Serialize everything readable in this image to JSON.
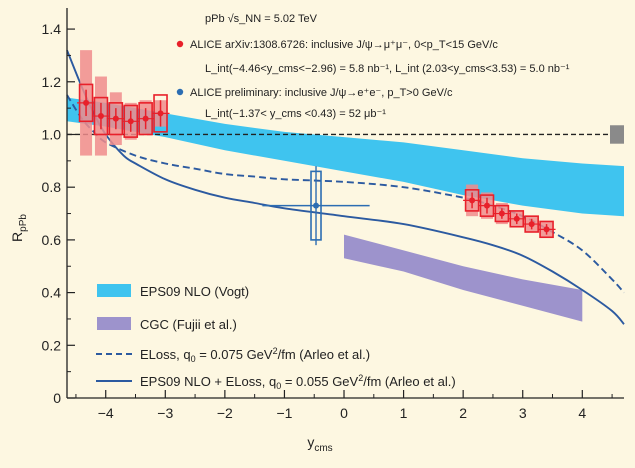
{
  "chart_data": {
    "type": "scatter",
    "xlabel_main": "y",
    "xlabel_sub": "cms",
    "ylabel_main": "R",
    "ylabel_sub": "pPb",
    "xlim": [
      -4.65,
      4.7
    ],
    "ylim": [
      0,
      1.48
    ],
    "xticks": [
      -4,
      -3,
      -2,
      -1,
      0,
      1,
      2,
      3,
      4
    ],
    "xtick_labels": [
      "−4",
      "−3",
      "−2",
      "−1",
      "0",
      "1",
      "2",
      "3",
      "4"
    ],
    "yticks": [
      0,
      0.2,
      0.4,
      0.6,
      0.8,
      1.0,
      1.2,
      1.4
    ],
    "ytick_labels": [
      "0",
      "0.2",
      "0.4",
      "0.6",
      "0.8",
      "1.0",
      "1.2",
      "1.4"
    ],
    "reference_line_y": 1.0,
    "annotations": {
      "line1": "pPb √s_NN = 5.02 TeV",
      "line2": "ALICE arXiv:1308.6726: inclusive J/ψ→μ⁺μ⁻, 0<p_T<15 GeV/c",
      "line3": "L_int(−4.46<y_cms<−2.96) = 5.8 nb⁻¹, L_int (2.03<y_cms<3.53) = 5.0 nb⁻¹",
      "line4": "ALICE preliminary: inclusive J/ψ→e⁺e⁻, p_T>0 GeV/c",
      "line5": "L_int(−1.37< y_cms <0.43) = 52 μb⁻¹"
    },
    "series": [
      {
        "name": "ALICE J/ψ→μμ backward",
        "color": "#e8202a",
        "points": [
          {
            "x": -4.33,
            "y": 1.12,
            "stat": 0.05,
            "syst": 0.07,
            "corr_lo": 0.2,
            "corr_hi": 0.2
          },
          {
            "x": -4.08,
            "y": 1.07,
            "stat": 0.05,
            "syst": 0.07,
            "corr_lo": 0.15,
            "corr_hi": 0.15
          },
          {
            "x": -3.83,
            "y": 1.06,
            "stat": 0.04,
            "syst": 0.06,
            "corr_lo": 0.1,
            "corr_hi": 0.1
          },
          {
            "x": -3.58,
            "y": 1.05,
            "stat": 0.04,
            "syst": 0.06,
            "corr_lo": 0.07,
            "corr_hi": 0.07
          },
          {
            "x": -3.33,
            "y": 1.06,
            "stat": 0.04,
            "syst": 0.06,
            "corr_lo": 0.06,
            "corr_hi": 0.07
          },
          {
            "x": -3.08,
            "y": 1.08,
            "stat": 0.05,
            "syst": 0.07,
            "corr_lo": 0.05,
            "corr_hi": 0.05
          }
        ]
      },
      {
        "name": "ALICE J/ψ→μμ forward",
        "color": "#e8202a",
        "points": [
          {
            "x": 2.15,
            "y": 0.75,
            "stat": 0.03,
            "syst": 0.04,
            "corr_lo": 0.06,
            "corr_hi": 0.06
          },
          {
            "x": 2.4,
            "y": 0.73,
            "stat": 0.03,
            "syst": 0.04,
            "corr_lo": 0.05,
            "corr_hi": 0.05
          },
          {
            "x": 2.65,
            "y": 0.7,
            "stat": 0.02,
            "syst": 0.03,
            "corr_lo": 0.04,
            "corr_hi": 0.04
          },
          {
            "x": 2.9,
            "y": 0.68,
            "stat": 0.02,
            "syst": 0.03,
            "corr_lo": 0.03,
            "corr_hi": 0.03
          },
          {
            "x": 3.15,
            "y": 0.66,
            "stat": 0.02,
            "syst": 0.03,
            "corr_lo": 0.03,
            "corr_hi": 0.03
          },
          {
            "x": 3.4,
            "y": 0.64,
            "stat": 0.02,
            "syst": 0.03,
            "corr_lo": 0.03,
            "corr_hi": 0.03
          }
        ]
      },
      {
        "name": "ALICE preliminary J/ψ→ee",
        "color": "#2c6db2",
        "points": [
          {
            "x": -0.47,
            "y": 0.73,
            "xerr_lo": 0.9,
            "xerr_hi": 0.9,
            "stat": 0.15,
            "syst": 0.13
          }
        ]
      }
    ],
    "bands": [
      {
        "name": "EPS09 NLO (Vogt)",
        "color": "#3fc4ef",
        "x": [
          -4.65,
          -4.0,
          -3.0,
          -2.0,
          -1.0,
          0.0,
          1.0,
          2.0,
          3.0,
          4.0,
          4.7
        ],
        "upper": [
          1.14,
          1.12,
          1.08,
          1.04,
          1.01,
          0.99,
          0.97,
          0.94,
          0.91,
          0.89,
          0.88
        ],
        "lower": [
          1.05,
          1.03,
          0.99,
          0.94,
          0.9,
          0.86,
          0.82,
          0.77,
          0.73,
          0.7,
          0.69
        ]
      },
      {
        "name": "CGC (Fujii et al.)",
        "color": "#9d93cc",
        "x": [
          0.0,
          1.0,
          2.0,
          3.0,
          4.0
        ],
        "upper": [
          0.62,
          0.56,
          0.5,
          0.45,
          0.41
        ],
        "lower": [
          0.53,
          0.48,
          0.41,
          0.35,
          0.29
        ]
      }
    ],
    "curves": [
      {
        "name": "ELoss, q0 = 0.075 GeV²/fm (Arleo et al.)",
        "color": "#2c5aa0",
        "dash": true,
        "x": [
          -4.65,
          -4.4,
          -4.2,
          -4.0,
          -3.5,
          -3.0,
          -2.5,
          -2.0,
          -1.5,
          -1.0,
          0.0,
          1.0,
          2.0,
          2.5,
          3.0,
          3.5,
          4.0,
          4.5,
          4.7
        ],
        "y": [
          1.15,
          1.06,
          1.01,
          0.97,
          0.92,
          0.89,
          0.87,
          0.85,
          0.84,
          0.83,
          0.82,
          0.8,
          0.76,
          0.73,
          0.69,
          0.63,
          0.56,
          0.45,
          0.4
        ]
      },
      {
        "name": "EPS09 NLO + ELoss, q0 = 0.055 GeV²/fm (Arleo et al.)",
        "color": "#2c5aa0",
        "dash": false,
        "x": [
          -4.65,
          -4.4,
          -4.2,
          -4.0,
          -3.7,
          -3.5,
          -3.0,
          -2.5,
          -2.0,
          -1.5,
          -1.0,
          0.0,
          1.0,
          2.0,
          2.5,
          3.0,
          3.5,
          4.0,
          4.5,
          4.7
        ],
        "y": [
          1.32,
          1.18,
          1.08,
          1.0,
          0.92,
          0.89,
          0.83,
          0.79,
          0.76,
          0.74,
          0.72,
          0.69,
          0.66,
          0.61,
          0.58,
          0.54,
          0.48,
          0.41,
          0.33,
          0.28
        ]
      }
    ],
    "legend": [
      {
        "label": "EPS09 NLO (Vogt)",
        "kind": "band",
        "color": "#3fc4ef"
      },
      {
        "label": "CGC (Fujii et al.)",
        "kind": "band",
        "color": "#9d93cc"
      },
      {
        "label": "ELoss, q0 = 0.075 GeV²/fm (Arleo et al.)",
        "kind": "dashed",
        "color": "#2c5aa0"
      },
      {
        "label": "EPS09 NLO + ELoss, q0 = 0.055 GeV²/fm (Arleo et al.)",
        "kind": "solid",
        "color": "#2c5aa0"
      }
    ],
    "legend_text": {
      "l1": "EPS09 NLO (Vogt)",
      "l2": "CGC (Fujii et al.)",
      "l3a": "ELoss, q",
      "l3b": " = 0.075 GeV",
      "l3c": "/fm (Arleo et al.)",
      "l4a": "EPS09 NLO + ELoss, q",
      "l4b": " = 0.055 GeV",
      "l4c": "/fm (Arleo et al.)",
      "sub0": "0",
      "sup2": "2"
    },
    "global_uncertainty_box": {
      "y": 1.0,
      "halfheight": 0.035,
      "color": "#8a8a8a"
    }
  }
}
